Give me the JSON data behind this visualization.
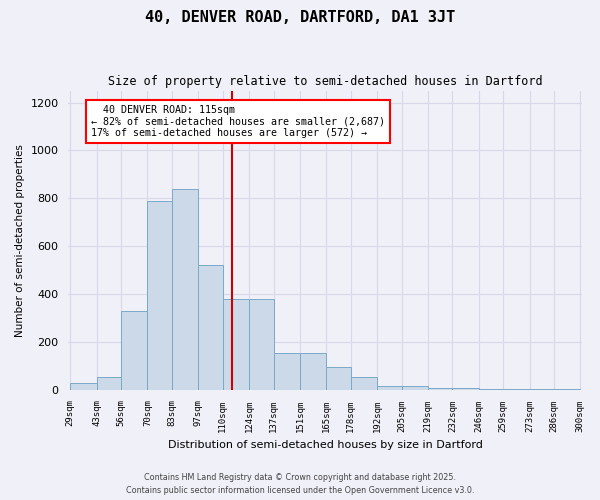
{
  "title": "40, DENVER ROAD, DARTFORD, DA1 3JT",
  "subtitle": "Size of property relative to semi-detached houses in Dartford",
  "xlabel": "Distribution of semi-detached houses by size in Dartford",
  "ylabel": "Number of semi-detached properties",
  "annotation_line1": "  40 DENVER ROAD: 115sqm  ",
  "annotation_line2": "← 82% of semi-detached houses are smaller (2,687)",
  "annotation_line3": "17% of semi-detached houses are larger (572) →",
  "property_size": 115,
  "footer_line1": "Contains HM Land Registry data © Crown copyright and database right 2025.",
  "footer_line2": "Contains public sector information licensed under the Open Government Licence v3.0.",
  "bar_edges": [
    29,
    43,
    56,
    70,
    83,
    97,
    110,
    124,
    137,
    151,
    165,
    178,
    192,
    205,
    219,
    232,
    246,
    259,
    273,
    286,
    300
  ],
  "bar_heights": [
    30,
    55,
    330,
    790,
    840,
    520,
    380,
    380,
    155,
    155,
    95,
    55,
    15,
    15,
    5,
    5,
    2,
    2,
    1,
    1
  ],
  "bar_color": "#ccd9e8",
  "bar_edgecolor": "#7aaac8",
  "vline_color": "#cc0000",
  "vline_x": 115,
  "grid_color": "#d8d8e8",
  "background_color": "#f0f0f8",
  "ylim": [
    0,
    1250
  ],
  "yticks": [
    0,
    200,
    400,
    600,
    800,
    1000,
    1200
  ]
}
